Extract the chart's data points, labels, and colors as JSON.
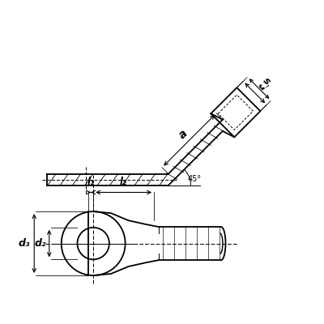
{
  "bg_color": "#ffffff",
  "line_color": "#000000",
  "dim_color": "#000000",
  "figsize": [
    4.0,
    4.0
  ],
  "dpi": 100,
  "labels": {
    "a": "a",
    "d1": "d",
    "s": "s",
    "angle": "45°",
    "l1": "l₁",
    "l2": "l₂",
    "d2": "d₂",
    "d3": "d₃"
  }
}
